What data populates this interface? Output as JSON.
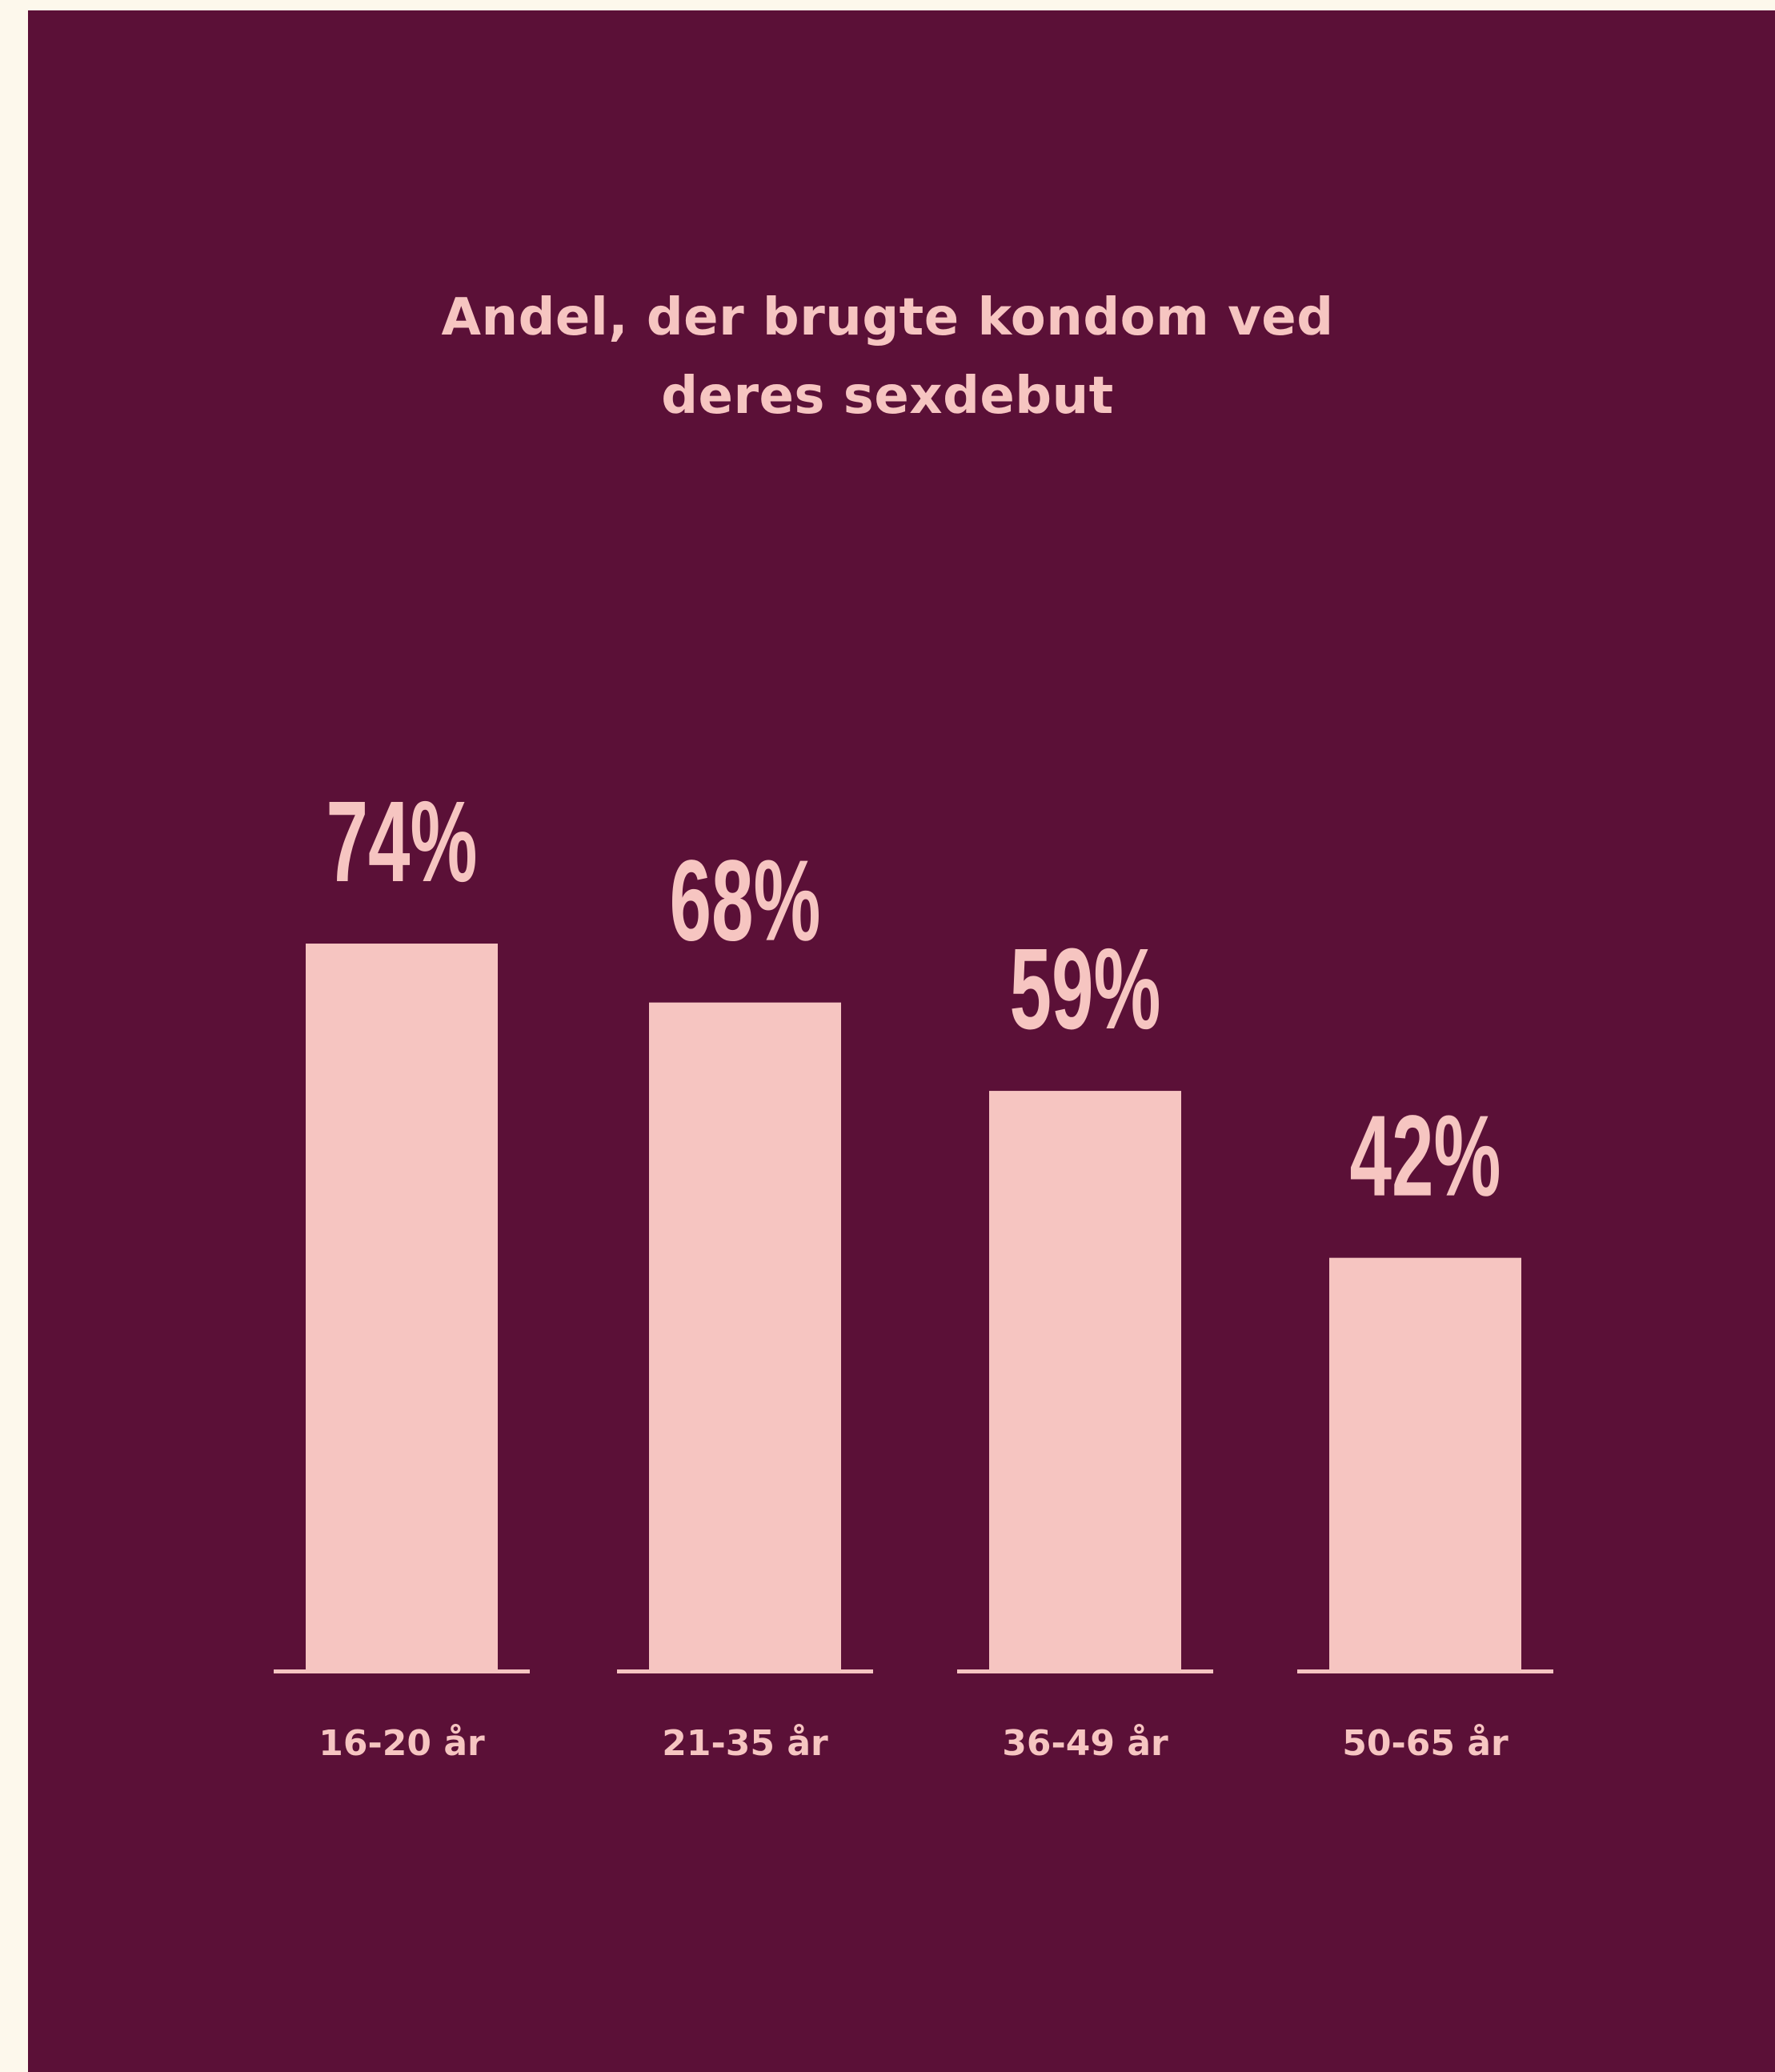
{
  "colors": {
    "outer_background": "#fdf8ec",
    "panel_background": "#5b1037",
    "bar": "#f6c5c1",
    "text": "#f6c5c1"
  },
  "chart_data": {
    "type": "bar",
    "title_lines": [
      "Andel, der brugte kondom ved",
      "deres sexdebut"
    ],
    "title": "Andel, der brugte kondom ved deres sexdebut",
    "categories": [
      "16-20 år",
      "21-35 år",
      "36-49 år",
      "50-65 år"
    ],
    "values": [
      74,
      68,
      59,
      42
    ],
    "value_labels": [
      "74%",
      "68%",
      "59%",
      "42%"
    ],
    "unit": "%",
    "xlabel": "",
    "ylabel": "",
    "ylim": [
      0,
      100
    ],
    "grid": false,
    "legend": "none",
    "y_axis_shown": false
  }
}
